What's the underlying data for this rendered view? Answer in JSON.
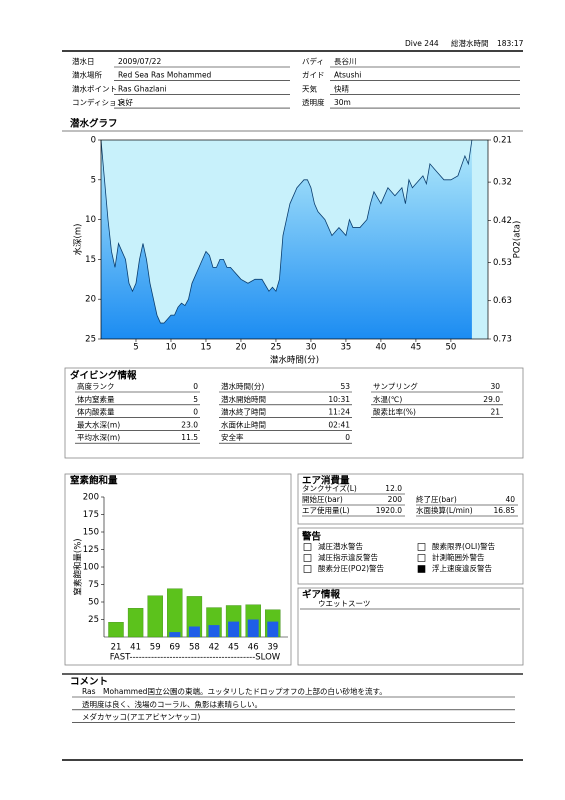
{
  "header": {
    "dive": "Dive 244",
    "total_time_label": "総潜水時間",
    "total_time": "183:17"
  },
  "info": {
    "left": [
      {
        "label": "潜水日",
        "value": "2009/07/22"
      },
      {
        "label": "潜水場所",
        "value": "Red Sea Ras Mohammed"
      },
      {
        "label": "潜水ポイント",
        "value": "Ras Ghazlani"
      },
      {
        "label": "コンディション",
        "value": "良好"
      }
    ],
    "right": [
      {
        "label": "バディ",
        "value": "長谷川"
      },
      {
        "label": "ガイド",
        "value": "Atsushi"
      },
      {
        "label": "天気",
        "value": "快晴"
      },
      {
        "label": "透明度",
        "value": "30m"
      }
    ]
  },
  "chart_data": [
    {
      "type": "area",
      "title": "潜水グラフ",
      "xlabel": "潜水時間(分)",
      "ylabel": "水深(m)",
      "y2label": "PO2(ata)",
      "x": [
        0,
        0.5,
        1,
        1.5,
        2,
        2.5,
        3,
        3.5,
        4,
        4.5,
        5,
        5.5,
        6,
        6.5,
        7,
        7.5,
        8,
        8.5,
        9,
        9.5,
        10,
        10.5,
        11,
        11.5,
        12,
        12.5,
        13,
        13.5,
        14,
        14.5,
        15,
        15.5,
        16,
        16.5,
        17,
        17.5,
        18,
        18.5,
        19,
        19.5,
        20,
        21,
        22,
        23,
        24,
        24.5,
        25,
        25.5,
        26,
        26.5,
        27,
        28,
        29,
        29.5,
        30,
        30.5,
        31,
        32,
        33,
        34,
        35,
        35.5,
        36,
        37,
        38,
        38.5,
        39,
        40,
        40.5,
        41,
        42,
        43,
        43.5,
        44,
        44.5,
        45,
        46,
        46.5,
        47,
        48,
        49,
        50,
        51,
        52,
        52.5,
        53
      ],
      "values": [
        0,
        5,
        10,
        14,
        16,
        13,
        14,
        15,
        18,
        19,
        18,
        15,
        13,
        15,
        18,
        20,
        22,
        23,
        23,
        22.5,
        22,
        22,
        21,
        20.5,
        20.8,
        20,
        18,
        17,
        16,
        15,
        14,
        14.5,
        16,
        16,
        15,
        15,
        16,
        16,
        16.5,
        17,
        17.5,
        18,
        17.5,
        17.5,
        19,
        18.5,
        19,
        17.5,
        12,
        10,
        8,
        6,
        5,
        5,
        6,
        8,
        9,
        10,
        12,
        11,
        12,
        10,
        11,
        11,
        10,
        8,
        6.5,
        8,
        7,
        6,
        7,
        6,
        8,
        5,
        6,
        5.5,
        4.5,
        5.5,
        3,
        4,
        5,
        5,
        4.5,
        2,
        3,
        0
      ],
      "xlim": [
        0,
        55.3
      ],
      "xticks": [
        5,
        10,
        15,
        20,
        25,
        30,
        35,
        40,
        45,
        50
      ],
      "ylim": [
        25,
        0
      ],
      "yticks": [
        0,
        5,
        10,
        15,
        20,
        25
      ],
      "y2lim": [
        0.73,
        0.21
      ],
      "y2ticks": [
        0.21,
        0.32,
        0.42,
        0.53,
        0.63,
        0.73
      ],
      "background": "#c8f1fb",
      "fill_top": "#b4ebfb",
      "fill_bottom": "#1b8cf2",
      "color": "#0a3d6e"
    },
    {
      "type": "bar",
      "title": "窒素飽和量",
      "ylabel": "窒素飽和量(%)",
      "xlabel": "FAST-----------------------------------------SLOW",
      "categories": [
        "21",
        "41",
        "59",
        "69",
        "58",
        "42",
        "45",
        "46",
        "39"
      ],
      "series": [
        {
          "color": "#5cc21c",
          "values": [
            21,
            41,
            59,
            69,
            58,
            42,
            45,
            46,
            39
          ]
        },
        {
          "color": "#1f5ee8",
          "values": [
            0,
            0,
            0,
            7,
            15,
            17,
            22,
            25,
            22
          ]
        }
      ],
      "ylim": [
        0,
        200
      ],
      "yticks": [
        25,
        50,
        75,
        100,
        125,
        150,
        175,
        200
      ]
    }
  ],
  "dive_info": {
    "title": "ダイビング情報",
    "columns": [
      [
        {
          "label": "高度ランク",
          "value": "0"
        },
        {
          "label": "体内窒素量",
          "value": "5"
        },
        {
          "label": "体内酸素量",
          "value": "0"
        },
        {
          "label": "最大水深(m)",
          "value": "23.0"
        },
        {
          "label": "平均水深(m)",
          "value": "11.5"
        }
      ],
      [
        {
          "label": "潜水時間(分)",
          "value": "53"
        },
        {
          "label": "潜水開始時間",
          "value": "10:31"
        },
        {
          "label": "潜水終了時間",
          "value": "11:24"
        },
        {
          "label": "水面休止時間",
          "value": "02:41"
        },
        {
          "label": "安全率",
          "value": "0"
        }
      ],
      [
        {
          "label": "サンプリング",
          "value": "30"
        },
        {
          "label": "水温(℃)",
          "value": "29.0"
        },
        {
          "label": "酸素比率(%)",
          "value": "21"
        }
      ]
    ]
  },
  "air": {
    "title": "エア消費量",
    "items": [
      {
        "label": "タンクサイズ(L)",
        "value": "12.0"
      },
      {
        "label": "開始圧(bar)",
        "value": "200"
      },
      {
        "label": "終了圧(bar)",
        "value": "40"
      },
      {
        "label": "エア使用量(L)",
        "value": "1920.0"
      },
      {
        "label": "水面換算(L/min)",
        "value": "16.85"
      }
    ]
  },
  "warnings": {
    "title": "警告",
    "items": [
      {
        "label": "減圧潜水警告",
        "checked": false
      },
      {
        "label": "酸素限界(OLI)警告",
        "checked": false
      },
      {
        "label": "減圧指示違反警告",
        "checked": false
      },
      {
        "label": "計測範囲外警告",
        "checked": false
      },
      {
        "label": "酸素分圧(PO2)警告",
        "checked": false
      },
      {
        "label": "浮上速度違反警告",
        "checked": true
      }
    ]
  },
  "gear": {
    "title": "ギア情報",
    "items": [
      "ウエットスーツ"
    ]
  },
  "comment": {
    "title": "コメント",
    "lines": [
      "Ras　Mohammed国立公園の東端。ユッタリしたドロップオフの上部の白い砂地を流す。",
      "透明度は良く、浅場のコーラル、魚影は素晴らしい。",
      "メダカヤッコ(アエアビヤンヤッコ)"
    ]
  }
}
